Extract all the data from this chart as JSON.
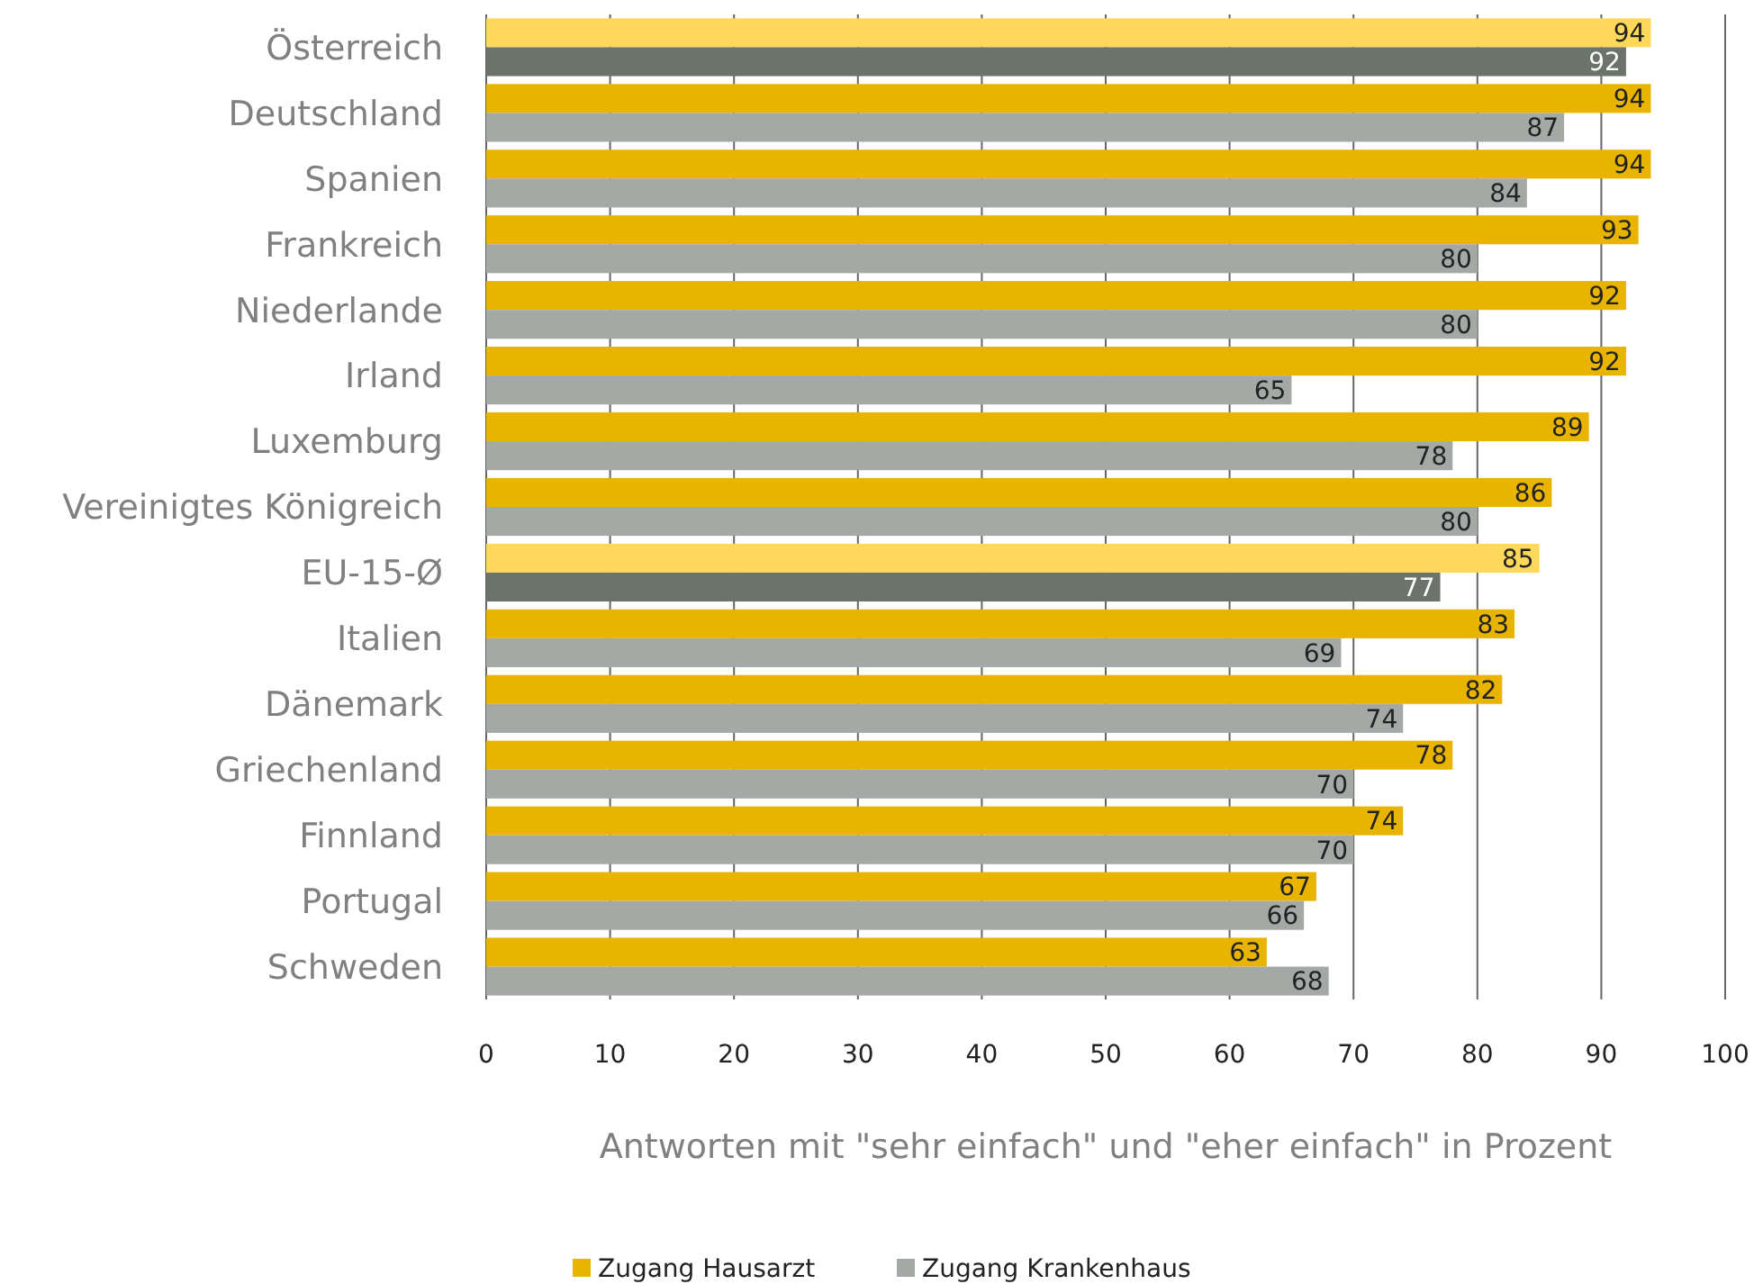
{
  "chart_data": {
    "type": "bar",
    "orientation": "horizontal",
    "xlabel": "Antworten mit \"sehr einfach\" und \"eher einfach\" in Prozent",
    "categories": [
      "Österreich",
      "Deutschland",
      "Spanien",
      "Frankreich",
      "Niederlande",
      "Irland",
      "Luxemburg",
      "Vereinigtes Königreich",
      "EU-15-Ø",
      "Italien",
      "Dänemark",
      "Griechenland",
      "Finnland",
      "Portugal",
      "Schweden"
    ],
    "series": [
      {
        "name": "Zugang Hausarzt",
        "color": "#e8b400",
        "colors": [
          "#fdd85a",
          "#e8b400",
          "#e8b400",
          "#e8b400",
          "#e8b400",
          "#e8b400",
          "#e8b400",
          "#e8b400",
          "#fdd85a",
          "#e8b400",
          "#e8b400",
          "#e8b400",
          "#e8b400",
          "#e8b400",
          "#e8b400"
        ],
        "values": [
          94,
          94,
          94,
          93,
          92,
          92,
          89,
          86,
          85,
          83,
          82,
          78,
          74,
          67,
          63
        ]
      },
      {
        "name": "Zugang Krankenhaus",
        "color": "#a4a9a6",
        "colors": [
          "#6b736b",
          "#a4a9a6",
          "#a4a9a6",
          "#a4a9a6",
          "#a4a9a6",
          "#a4a9a6",
          "#a4a9a6",
          "#a4a9a6",
          "#6b736b",
          "#a4a9a6",
          "#a4a9a6",
          "#a4a9a6",
          "#a4a9a6",
          "#a4a9a6",
          "#a4a9a6"
        ],
        "values": [
          92,
          87,
          84,
          80,
          80,
          65,
          78,
          80,
          77,
          69,
          74,
          70,
          70,
          66,
          68
        ]
      }
    ],
    "xlim": [
      0,
      100
    ],
    "xticks": [
      0,
      10,
      20,
      30,
      40,
      50,
      60,
      70,
      80,
      90,
      100
    ],
    "grid": "x",
    "data_labels": true,
    "legend": "bottom"
  }
}
